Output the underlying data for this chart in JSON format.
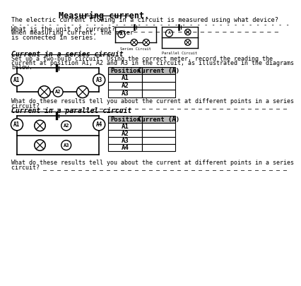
{
  "title": "Measuring current.",
  "bg_color": "#ffffff",
  "text_color": "#000000",
  "dashes_long": "- - - - - - - - - - - - - - - - - - - - - - - - - - - - - - - - - - - - - -",
  "dashes_short": "_ _ _ _ _ _ _ _ _ _ _ _ _ _ _ _ _ _ _ _ _ _ _ _ _ _ _ _ _ _ _ _ _ _ _ _",
  "q1": "The electric current flowing in a circuit is measured using what device?",
  "q2": "What is the unit of current? _ _ _ _ _ _ _ _ _ _ _ _ _ _ _ _ _ _ _ _ _ _",
  "q3_line1": "When measuring current, the meter",
  "q3_line2": "is connected in series.",
  "series_title": "Current in a series circuit",
  "series_body_1": "Set up a two-bulb circuit. Using the correct meter, record the reading the",
  "series_body_2": "current at position A1, A2 and A3 in the circuit, as illustrated in the diagrams",
  "series_body_3": "below.",
  "series_headers": [
    "Position",
    "Current (A)"
  ],
  "series_rows": [
    "A1",
    "A2",
    "A3"
  ],
  "series_q_1": "What do these results tell you about the current at different points in a series",
  "series_q_2": "circuit? _ _ _ _ _ _ _ _ _ _ _ _ _ _ _ _ _ _ _ _ _ _ _ _ _ _ _ _ _ _ _ _ _ _ _",
  "parallel_title": "Current in a parallel circuit",
  "parallel_headers": [
    "Position",
    "Current (A)"
  ],
  "parallel_rows": [
    "A1",
    "A2",
    "A3",
    "A4"
  ],
  "parallel_q_1": "What do these results tell you about the current at different points in a series",
  "parallel_q_2": "circuit? _ _ _ _ _ _ _ _ _ _ _ _ _ _ _ _ _ _ _ _ _ _ _ _ _ _ _ _ _ _ _ _ _ _ _",
  "table_header_bg": "#b8b8b8",
  "series_circuit_label": "Series Circuit",
  "parallel_circuit_label": "Parallel Circuit"
}
